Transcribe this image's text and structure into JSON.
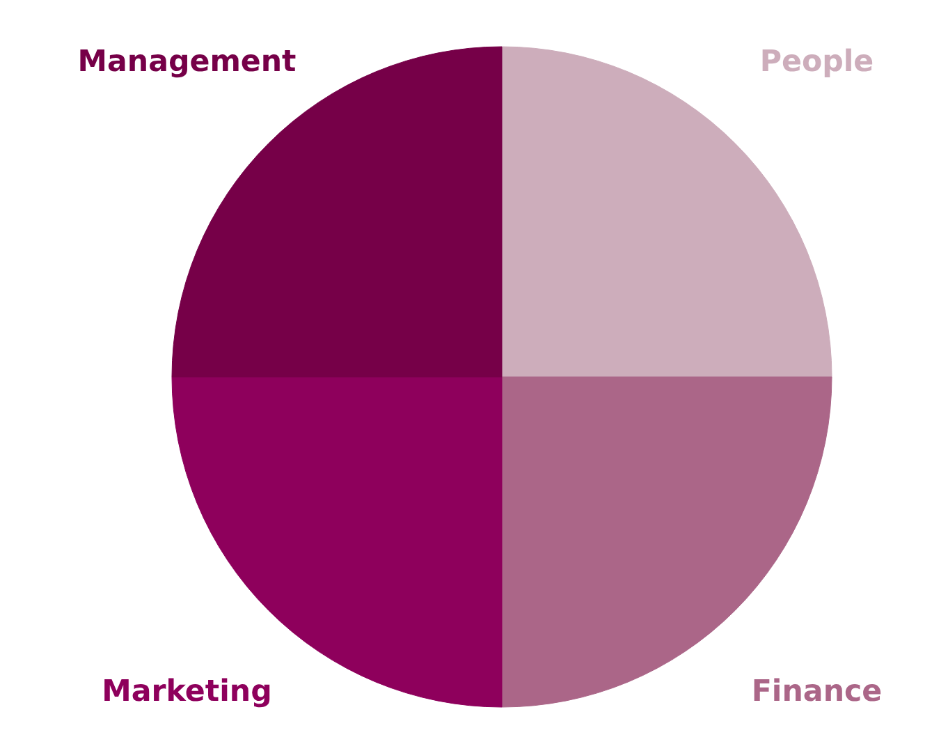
{
  "chart_data": {
    "type": "pie",
    "categories": [
      "People",
      "Finance",
      "Marketing",
      "Management"
    ],
    "values": [
      25,
      25,
      25,
      25
    ],
    "colors": [
      "#cdadbb",
      "#ab6688",
      "#8e005c",
      "#760048"
    ]
  }
}
